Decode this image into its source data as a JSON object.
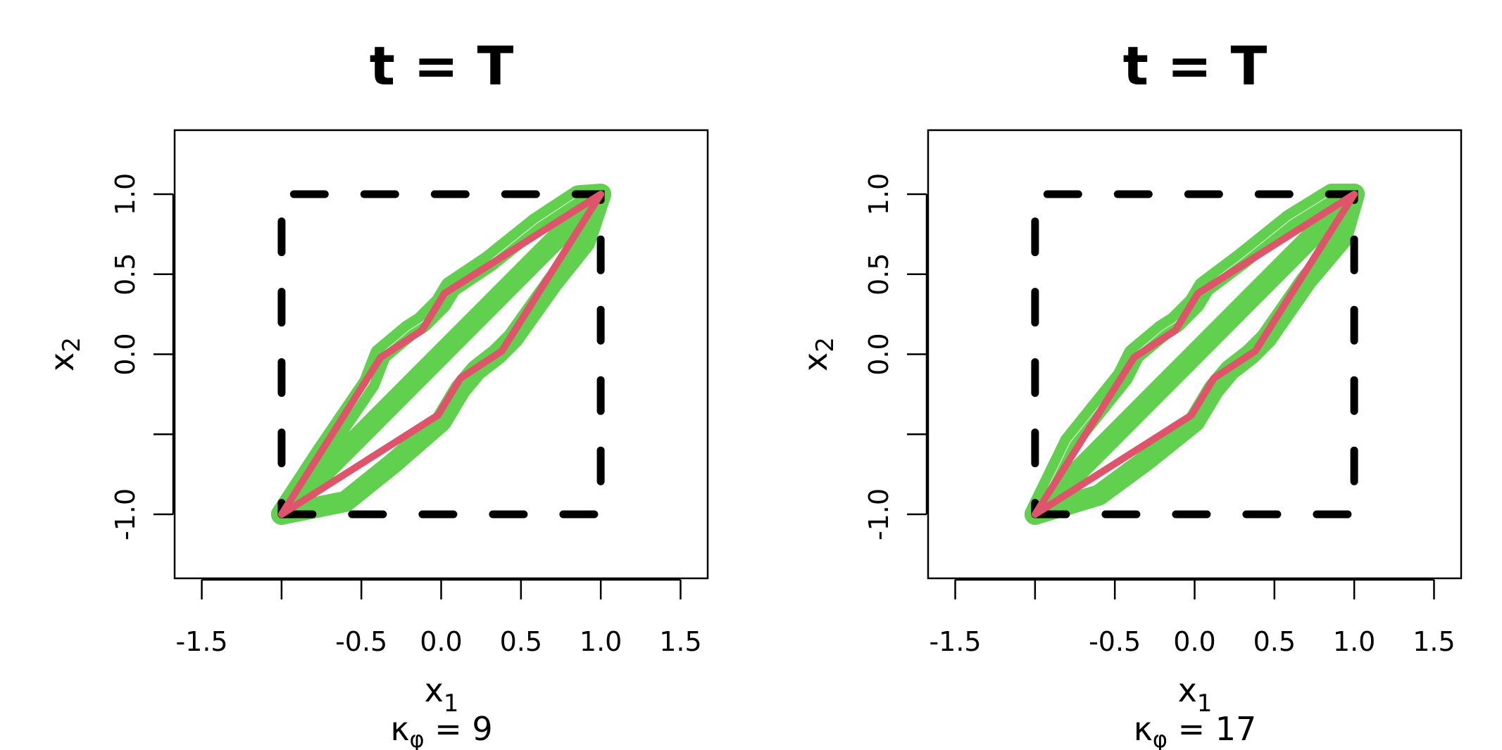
{
  "chart_data": [
    {
      "type": "line",
      "title": "t = T",
      "xlabel": "x",
      "xlabel_sub": "1",
      "ylabel": "x",
      "ylabel_sub": "2",
      "subtitle": {
        "symbol": "κ",
        "sub": "φ",
        "text": " = 9"
      },
      "xlim": [
        -1.67,
        1.67
      ],
      "ylim": [
        -1.4,
        1.4
      ],
      "xticks": [
        -1.5,
        -1.0,
        -0.5,
        0.0,
        0.5,
        1.0,
        1.5
      ],
      "xtick_labels": [
        "-1.5",
        "",
        "-0.5",
        "0.0",
        "0.5",
        "1.0",
        "1.5"
      ],
      "yticks": [
        -1.0,
        -0.5,
        0.0,
        0.5,
        1.0
      ],
      "ytick_labels": [
        "-1.0",
        "",
        "0.0",
        "0.5",
        "1.0"
      ],
      "grid": false,
      "series": [
        {
          "style": "dashed",
          "color": "#000000",
          "x": [
            -1,
            1,
            1,
            -1,
            -1
          ],
          "y": [
            -1,
            -1,
            1,
            1,
            -1
          ]
        },
        {
          "style": "band",
          "color": "#61D04F",
          "upper": {
            "x": [
              -1,
              -0.75,
              -0.45,
              -0.38,
              -0.2,
              -0.12,
              0.0,
              0.06,
              0.3,
              0.6,
              0.86,
              1.0
            ],
            "y": [
              -1,
              -0.62,
              -0.18,
              0.0,
              0.15,
              0.2,
              0.32,
              0.42,
              0.58,
              0.82,
              0.99,
              1.0
            ]
          },
          "lower": {
            "x": [
              -1,
              -0.6,
              -0.3,
              0.0,
              0.12,
              0.22,
              0.35,
              0.45,
              0.7,
              0.9,
              1.0
            ],
            "y": [
              -1,
              -0.92,
              -0.68,
              -0.42,
              -0.22,
              -0.1,
              0.0,
              0.1,
              0.45,
              0.7,
              1.0
            ]
          }
        },
        {
          "style": "solid",
          "color": "#DF536B",
          "x": [
            -1,
            -0.38,
            -0.12,
            0.02,
            1,
            0.38,
            0.12,
            -0.02,
            -1
          ],
          "y": [
            -1,
            -0.02,
            0.15,
            0.38,
            1,
            0.02,
            -0.15,
            -0.38,
            -1
          ]
        }
      ]
    },
    {
      "type": "line",
      "title": "t = T",
      "xlabel": "x",
      "xlabel_sub": "1",
      "ylabel": "x",
      "ylabel_sub": "2",
      "subtitle": {
        "symbol": "κ",
        "sub": "φ",
        "text": " = 17"
      },
      "xlim": [
        -1.67,
        1.67
      ],
      "ylim": [
        -1.4,
        1.4
      ],
      "xticks": [
        -1.5,
        -1.0,
        -0.5,
        0.0,
        0.5,
        1.0,
        1.5
      ],
      "xtick_labels": [
        "-1.5",
        "",
        "-0.5",
        "0.0",
        "0.5",
        "1.0",
        "1.5"
      ],
      "yticks": [
        -1.0,
        -0.5,
        0.0,
        0.5,
        1.0
      ],
      "ytick_labels": [
        "-1.0",
        "",
        "0.0",
        "0.5",
        "1.0"
      ],
      "grid": false,
      "series": [
        {
          "style": "dashed",
          "color": "#000000",
          "x": [
            -1,
            1,
            1,
            -1,
            -1
          ],
          "y": [
            -1,
            -1,
            1,
            1,
            -1
          ]
        },
        {
          "style": "band",
          "color": "#61D04F",
          "upper": {
            "x": [
              -1,
              -0.78,
              -0.45,
              -0.38,
              -0.2,
              -0.12,
              0.0,
              0.06,
              0.3,
              0.6,
              0.86,
              1.0
            ],
            "y": [
              -1,
              -0.55,
              -0.14,
              0.0,
              0.15,
              0.2,
              0.32,
              0.42,
              0.6,
              0.84,
              1.0,
              1.0
            ]
          },
          "lower": {
            "x": [
              -1,
              -0.6,
              -0.3,
              0.0,
              0.12,
              0.22,
              0.35,
              0.45,
              0.7,
              0.92,
              1.0
            ],
            "y": [
              -1,
              -0.88,
              -0.66,
              -0.42,
              -0.22,
              -0.1,
              0.0,
              0.1,
              0.46,
              0.72,
              1.0
            ]
          }
        },
        {
          "style": "solid",
          "color": "#DF536B",
          "x": [
            -1,
            -0.38,
            -0.12,
            0.02,
            1,
            0.38,
            0.12,
            -0.02,
            -1
          ],
          "y": [
            -1,
            -0.02,
            0.15,
            0.38,
            1,
            0.02,
            -0.15,
            -0.38,
            -1
          ]
        }
      ]
    }
  ]
}
